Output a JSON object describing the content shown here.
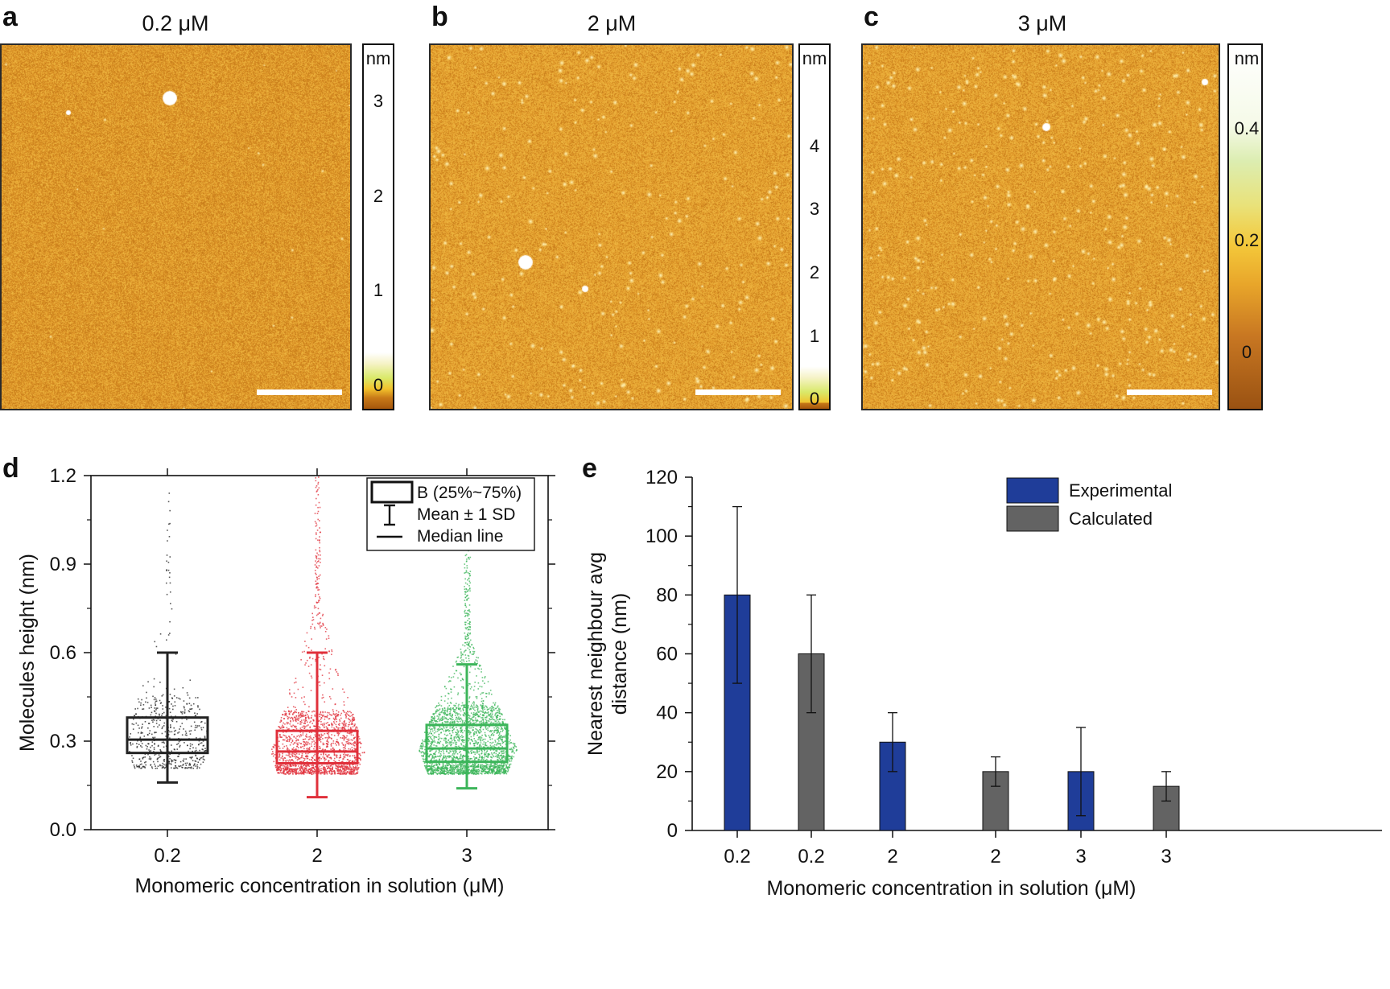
{
  "colors": {
    "afm_base": "#e29a2a",
    "afm_dark": "#c47818",
    "afm_light": "#f3c24a",
    "panel_d_02": "#222222",
    "panel_d_2": "#e0303b",
    "panel_d_3": "#3cb55a",
    "experimental": "#1f3d99",
    "calculated": "#636363"
  },
  "panels_afm": [
    {
      "letter": "a",
      "title": "0.2 μM",
      "colorbar_unit": "nm",
      "colorbar_ticks": [
        {
          "label": "3",
          "value": 3
        },
        {
          "label": "2",
          "value": 2
        },
        {
          "label": "1",
          "value": 1
        },
        {
          "label": "0",
          "value": 0
        }
      ],
      "colorbar_range": [
        -0.25,
        3.6
      ],
      "colorbar_type": "white-top"
    },
    {
      "letter": "b",
      "title": "2 μM",
      "colorbar_unit": "nm",
      "colorbar_ticks": [
        {
          "label": "4",
          "value": 4
        },
        {
          "label": "3",
          "value": 3
        },
        {
          "label": "2",
          "value": 2
        },
        {
          "label": "1",
          "value": 1
        },
        {
          "label": "0",
          "value": 0
        }
      ],
      "colorbar_range": [
        -0.15,
        5.6
      ],
      "colorbar_type": "white-top"
    },
    {
      "letter": "c",
      "title": "3 μM",
      "colorbar_unit": "nm",
      "colorbar_ticks": [
        {
          "label": "0.4",
          "value": 0.4
        },
        {
          "label": "0.2",
          "value": 0.2
        },
        {
          "label": "0",
          "value": 0
        }
      ],
      "colorbar_range": [
        -0.1,
        0.55
      ],
      "colorbar_type": "full"
    }
  ],
  "chart_data": [
    {
      "panel": "d",
      "type": "box",
      "xlabel": "Monomeric concentration in solution (μM)",
      "ylabel": "Molecules height (nm)",
      "ylim": [
        0,
        1.2
      ],
      "yticks": [
        {
          "label": "0.0",
          "value": 0.0
        },
        {
          "label": "0.3",
          "value": 0.3
        },
        {
          "label": "0.6",
          "value": 0.6
        },
        {
          "label": "0.9",
          "value": 0.9
        },
        {
          "label": "1.2",
          "value": 1.2
        }
      ],
      "categories": [
        "0.2",
        "2",
        "3"
      ],
      "boxes": [
        {
          "category": "0.2",
          "q1": 0.26,
          "median": 0.305,
          "q3": 0.38,
          "sd_low": 0.16,
          "sd_high": 0.6,
          "data_max": 1.18,
          "color": "#222222"
        },
        {
          "category": "2",
          "q1": 0.225,
          "median": 0.265,
          "q3": 0.335,
          "sd_low": 0.11,
          "sd_high": 0.6,
          "data_max": 1.2,
          "color": "#e0303b"
        },
        {
          "category": "3",
          "q1": 0.23,
          "median": 0.275,
          "q3": 0.355,
          "sd_low": 0.14,
          "sd_high": 0.56,
          "data_max": 0.95,
          "color": "#3cb55a"
        }
      ],
      "legend": {
        "placement": "top-right",
        "items": [
          {
            "symbol": "box",
            "label": "B (25%~75%)"
          },
          {
            "symbol": "errorbar",
            "label": "Mean ± 1 SD"
          },
          {
            "symbol": "line",
            "label": "Median line"
          }
        ]
      }
    },
    {
      "panel": "e",
      "type": "bar",
      "xlabel": "Monomeric concentration in solution (μM)",
      "ylabel_lines": [
        "Nearest neighbour avg",
        "distance (nm)"
      ],
      "ylim": [
        0,
        120
      ],
      "yticks": [
        {
          "label": "0",
          "value": 0
        },
        {
          "label": "20",
          "value": 20
        },
        {
          "label": "40",
          "value": 40
        },
        {
          "label": "60",
          "value": 60
        },
        {
          "label": "80",
          "value": 80
        },
        {
          "label": "100",
          "value": 100
        },
        {
          "label": "120",
          "value": 120
        }
      ],
      "categories": [
        "0.2",
        "0.2",
        "2",
        "2",
        "3",
        "3"
      ],
      "bars": [
        {
          "category": "0.2",
          "series": "Experimental",
          "value": 80,
          "err_low": 50,
          "err_high": 110
        },
        {
          "category": "0.2",
          "series": "Calculated",
          "value": 60,
          "err_low": 40,
          "err_high": 80
        },
        {
          "category": "2",
          "series": "Experimental",
          "value": 30,
          "err_low": 20,
          "err_high": 40
        },
        {
          "category": "2",
          "series": "Calculated",
          "value": 20,
          "err_low": 15,
          "err_high": 25
        },
        {
          "category": "3",
          "series": "Experimental",
          "value": 20,
          "err_low": 5,
          "err_high": 35
        },
        {
          "category": "3",
          "series": "Calculated",
          "value": 15,
          "err_low": 10,
          "err_high": 20
        }
      ],
      "legend": {
        "placement": "top-right",
        "items": [
          {
            "name": "Experimental",
            "color": "#1f3d99"
          },
          {
            "name": "Calculated",
            "color": "#636363"
          }
        ]
      }
    }
  ]
}
